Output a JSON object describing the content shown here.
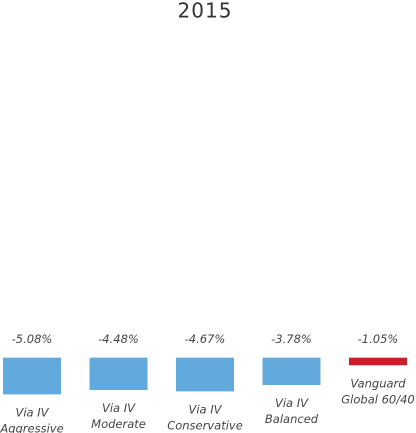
{
  "chart_data": {
    "type": "bar",
    "title": "2015",
    "categories": [
      [
        "Via IV",
        "Aggressive"
      ],
      [
        "Via IV",
        "Moderate"
      ],
      [
        "Via IV",
        "Conservative"
      ],
      [
        "Via IV",
        "Balanced"
      ],
      [
        "Vanguard",
        "Global 60/40"
      ]
    ],
    "values": [
      -5.08,
      -4.48,
      -4.67,
      -3.78,
      -1.05
    ],
    "value_labels": [
      "-5.08%",
      "-4.48%",
      "-4.67%",
      "-3.78%",
      "-1.05%"
    ],
    "colors": [
      "#62a9de",
      "#62a9de",
      "#62a9de",
      "#62a9de",
      "#c8202a"
    ],
    "ylim": [
      -6,
      44
    ]
  }
}
